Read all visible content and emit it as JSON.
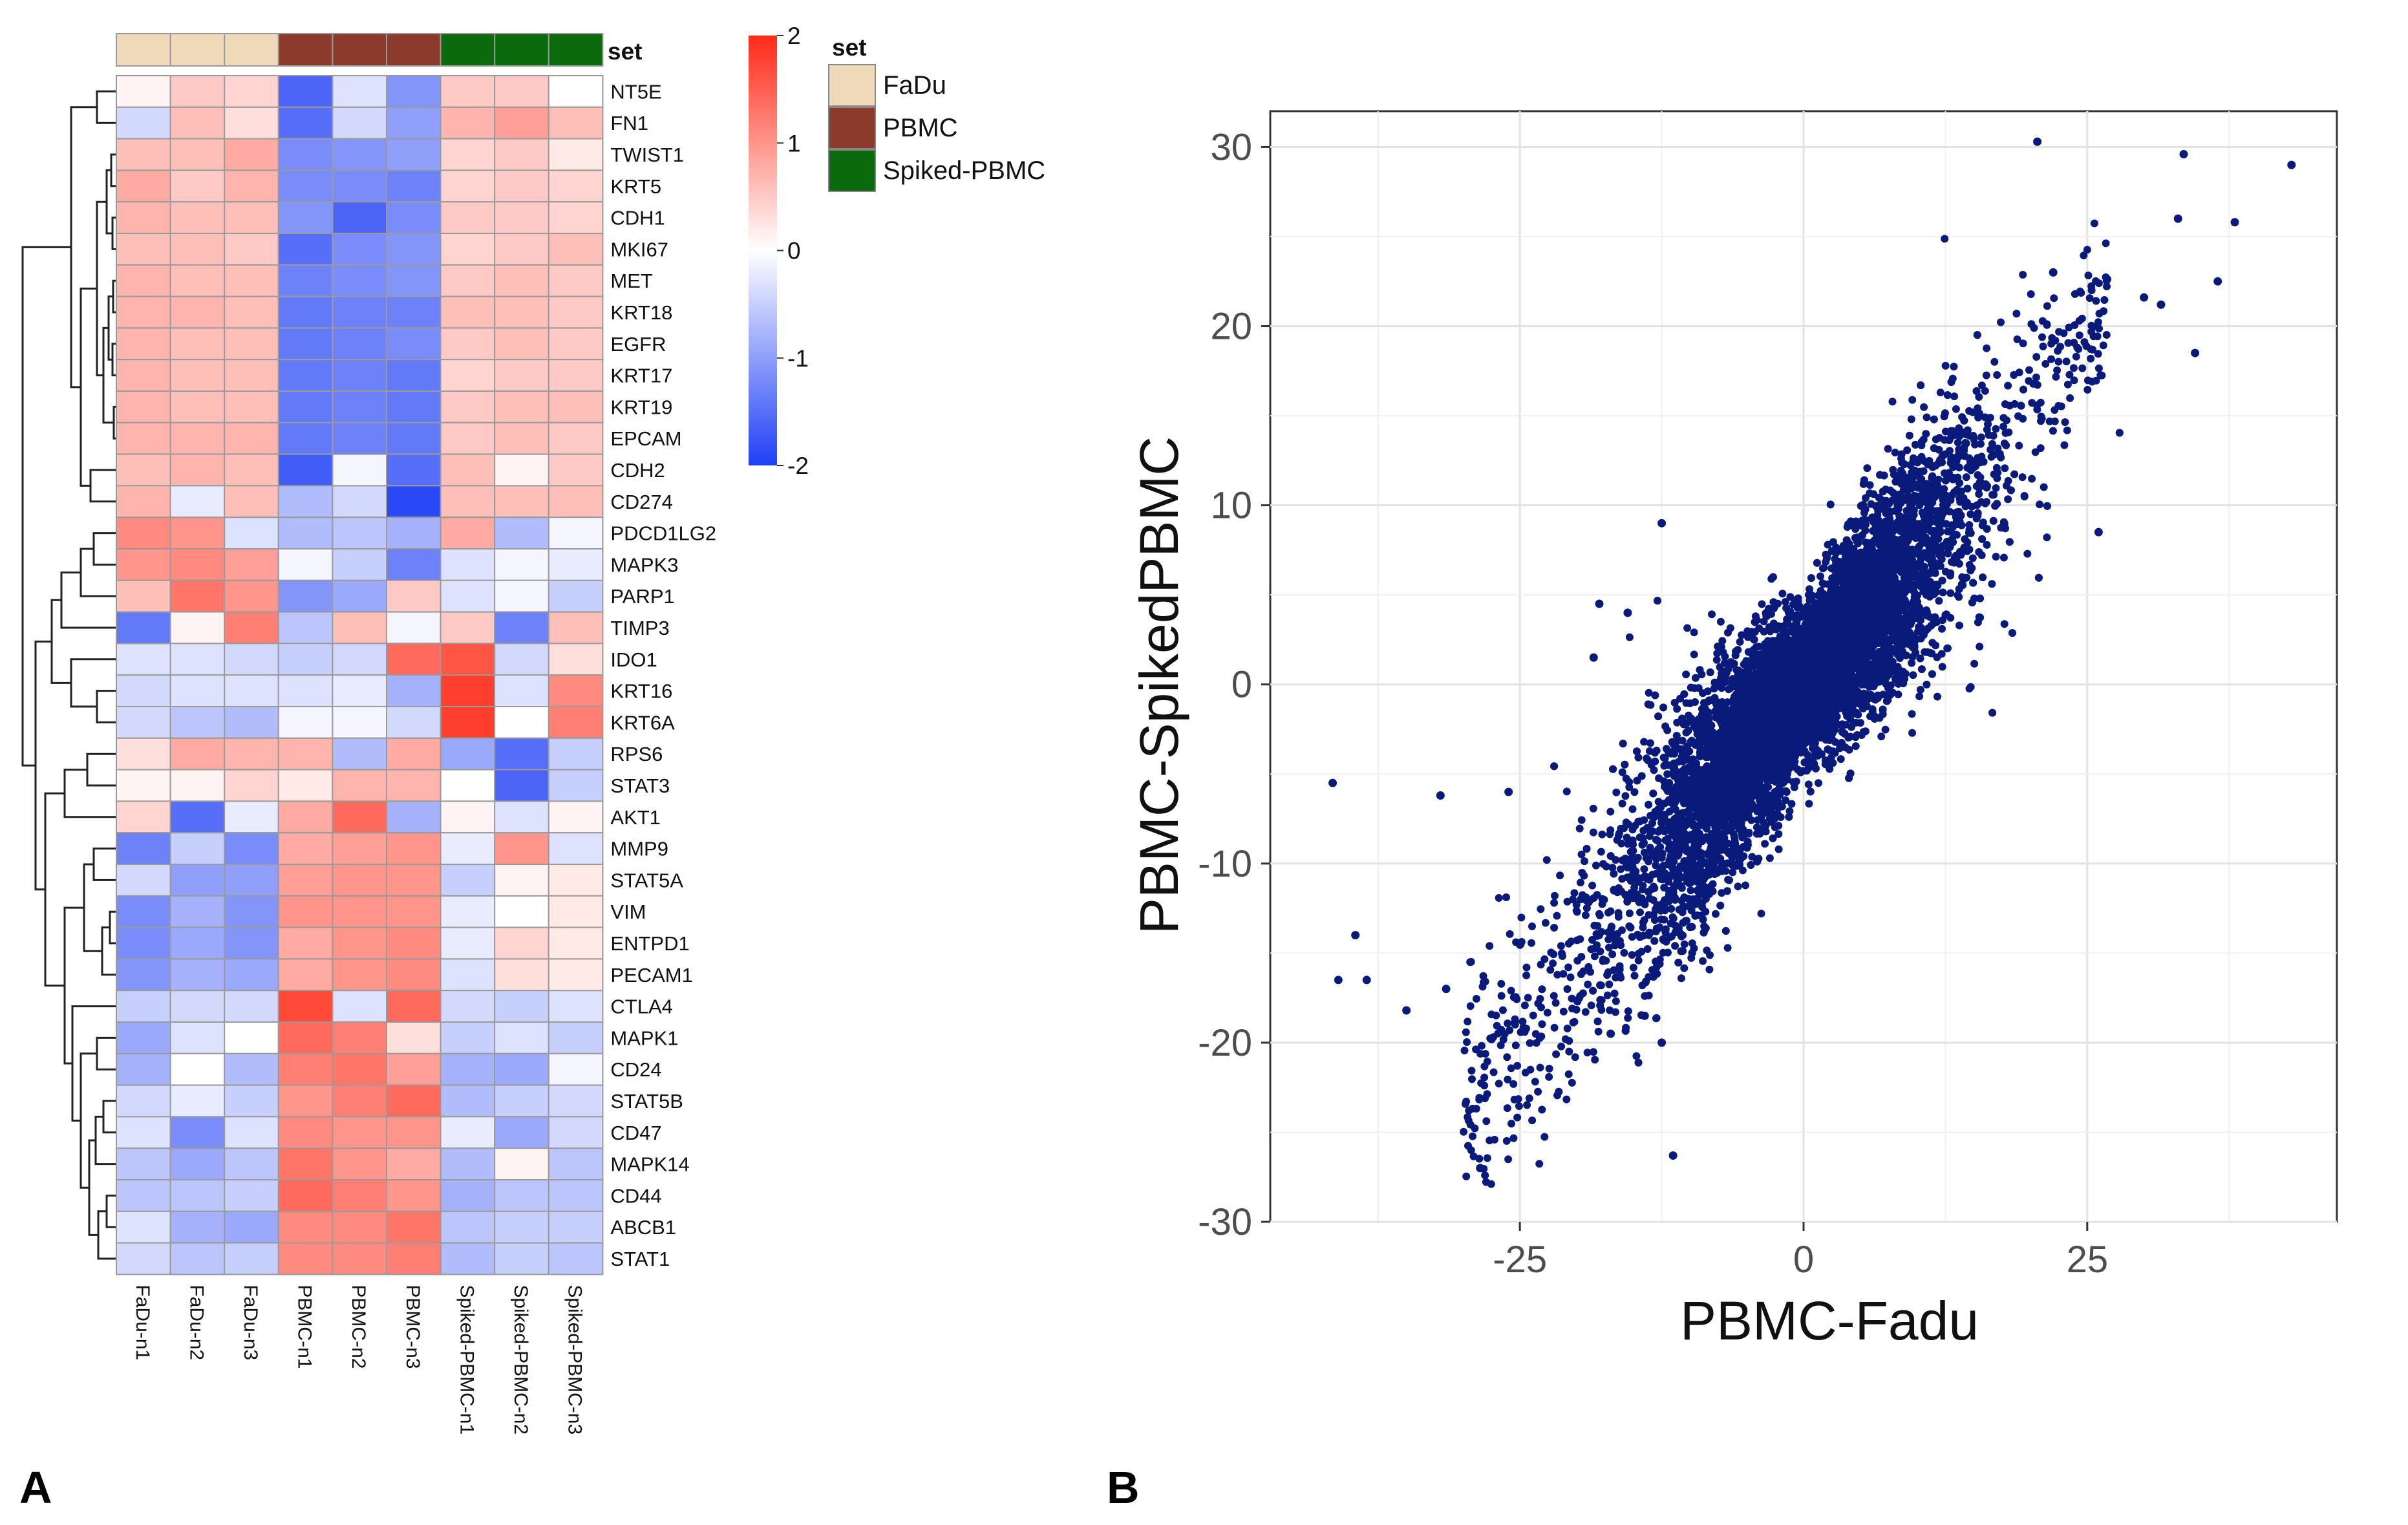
{
  "panels": {
    "a_label": "A",
    "b_label": "B"
  },
  "colors": {
    "fadu": "#f0d9b8",
    "pbmc": "#8b3a2c",
    "spiked": "#0b6a0b",
    "high": "#ff2a17",
    "mid": "#ffffff",
    "low": "#1f3ff5",
    "scatter_point": "#0a1a7a"
  },
  "chart_data": [
    {
      "type": "heatmap",
      "title": "",
      "annotation_title": "set",
      "legend": {
        "title": "set",
        "entries": [
          "FaDu",
          "PBMC",
          "Spiked-PBMC"
        ],
        "position": "right"
      },
      "colorbar": {
        "ticks": [
          2,
          1,
          0,
          -1,
          -2
        ],
        "range": [
          -2,
          2
        ]
      },
      "columns": [
        "FaDu-n1",
        "FaDu-n2",
        "FaDu-n3",
        "PBMC-n1",
        "PBMC-n2",
        "PBMC-n3",
        "Spiked-PBMC-n1",
        "Spiked-PBMC-n2",
        "Spiked-PBMC-n3"
      ],
      "column_groups": [
        "FaDu",
        "FaDu",
        "FaDu",
        "PBMC",
        "PBMC",
        "PBMC",
        "Spiked-PBMC",
        "Spiked-PBMC",
        "Spiked-PBMC"
      ],
      "rows": [
        "NT5E",
        "FN1",
        "TWIST1",
        "KRT5",
        "CDH1",
        "MKI67",
        "MET",
        "KRT18",
        "EGFR",
        "KRT17",
        "KRT19",
        "EPCAM",
        "CDH2",
        "CD274",
        "PDCD1LG2",
        "MAPK3",
        "PARP1",
        "TIMP3",
        "IDO1",
        "KRT16",
        "KRT6A",
        "RPS6",
        "STAT3",
        "AKT1",
        "MMP9",
        "STAT5A",
        "VIM",
        "ENTPD1",
        "PECAM1",
        "CTLA4",
        "MAPK1",
        "CD24",
        "STAT5B",
        "CD47",
        "MAPK14",
        "CD44",
        "ABCB1",
        "STAT1"
      ],
      "values": [
        [
          0.1,
          0.5,
          0.4,
          -1.6,
          -0.3,
          -1.1,
          0.5,
          0.5,
          0.0
        ],
        [
          -0.4,
          0.6,
          0.3,
          -1.5,
          -0.4,
          -1.0,
          0.7,
          0.9,
          0.6
        ],
        [
          0.6,
          0.6,
          0.8,
          -1.2,
          -1.1,
          -1.0,
          0.4,
          0.5,
          0.2
        ],
        [
          0.8,
          0.5,
          0.7,
          -1.2,
          -1.2,
          -1.3,
          0.4,
          0.5,
          0.4
        ],
        [
          0.7,
          0.6,
          0.6,
          -1.1,
          -1.6,
          -1.2,
          0.5,
          0.5,
          0.4
        ],
        [
          0.6,
          0.6,
          0.5,
          -1.5,
          -1.2,
          -1.1,
          0.4,
          0.5,
          0.6
        ],
        [
          0.7,
          0.6,
          0.6,
          -1.3,
          -1.2,
          -1.1,
          0.5,
          0.6,
          0.5
        ],
        [
          0.7,
          0.7,
          0.6,
          -1.4,
          -1.3,
          -1.3,
          0.6,
          0.6,
          0.5
        ],
        [
          0.7,
          0.6,
          0.6,
          -1.4,
          -1.3,
          -1.2,
          0.5,
          0.6,
          0.5
        ],
        [
          0.7,
          0.6,
          0.6,
          -1.4,
          -1.3,
          -1.4,
          0.4,
          0.5,
          0.5
        ],
        [
          0.7,
          0.6,
          0.6,
          -1.4,
          -1.3,
          -1.4,
          0.5,
          0.6,
          0.6
        ],
        [
          0.7,
          0.7,
          0.7,
          -1.4,
          -1.3,
          -1.4,
          0.5,
          0.6,
          0.5
        ],
        [
          0.6,
          0.7,
          0.6,
          -1.7,
          -0.1,
          -1.5,
          0.6,
          0.1,
          0.5
        ],
        [
          0.7,
          -0.2,
          0.6,
          -0.7,
          -0.4,
          -1.9,
          0.6,
          0.6,
          0.6
        ],
        [
          1.1,
          1.0,
          -0.3,
          -0.7,
          -0.6,
          -0.8,
          0.8,
          -0.7,
          -0.1
        ],
        [
          1.0,
          1.1,
          0.9,
          -0.1,
          -0.5,
          -1.3,
          -0.3,
          -0.1,
          -0.2
        ],
        [
          0.6,
          1.3,
          1.0,
          -1.1,
          -0.9,
          0.5,
          -0.3,
          -0.1,
          -0.5
        ],
        [
          -1.4,
          0.1,
          1.2,
          -0.6,
          0.6,
          -0.1,
          0.5,
          -1.3,
          0.6
        ],
        [
          -0.3,
          -0.3,
          -0.4,
          -0.5,
          -0.4,
          1.4,
          1.6,
          -0.4,
          0.3
        ],
        [
          -0.4,
          -0.3,
          -0.3,
          -0.3,
          -0.2,
          -0.8,
          1.8,
          -0.3,
          1.1
        ],
        [
          -0.4,
          -0.6,
          -0.7,
          -0.1,
          -0.1,
          -0.4,
          1.8,
          0.0,
          1.2
        ],
        [
          0.3,
          0.8,
          0.7,
          0.7,
          -0.7,
          0.8,
          -0.9,
          -1.5,
          -0.5
        ],
        [
          0.1,
          0.1,
          0.4,
          0.2,
          0.7,
          0.7,
          0.0,
          -1.6,
          -0.5
        ],
        [
          0.4,
          -1.5,
          -0.2,
          0.8,
          1.4,
          -0.8,
          0.1,
          -0.3,
          0.1
        ],
        [
          -1.3,
          -0.5,
          -1.2,
          0.8,
          0.9,
          1.0,
          -0.2,
          1.0,
          -0.3
        ],
        [
          -0.4,
          -1.0,
          -1.0,
          0.9,
          1.0,
          1.0,
          -0.5,
          0.1,
          0.2
        ],
        [
          -1.2,
          -0.8,
          -1.1,
          1.0,
          1.0,
          1.0,
          -0.2,
          0.0,
          0.2
        ],
        [
          -1.2,
          -0.9,
          -1.1,
          0.8,
          1.0,
          1.1,
          -0.2,
          0.4,
          0.2
        ],
        [
          -1.1,
          -0.8,
          -0.9,
          0.8,
          1.0,
          1.1,
          -0.3,
          0.3,
          0.2
        ],
        [
          -0.5,
          -0.4,
          -0.4,
          1.7,
          -0.3,
          1.4,
          -0.4,
          -0.5,
          -0.3
        ],
        [
          -0.9,
          -0.3,
          0.0,
          1.4,
          1.2,
          0.3,
          -0.5,
          -0.3,
          -0.5
        ],
        [
          -0.8,
          0.0,
          -0.7,
          1.2,
          1.3,
          0.9,
          -0.8,
          -0.9,
          -0.1
        ],
        [
          -0.4,
          -0.2,
          -0.5,
          1.0,
          1.2,
          1.4,
          -0.7,
          -0.5,
          -0.4
        ],
        [
          -0.3,
          -1.2,
          -0.3,
          1.1,
          1.0,
          1.0,
          -0.2,
          -0.9,
          -0.4
        ],
        [
          -0.6,
          -0.9,
          -0.6,
          1.3,
          1.0,
          0.8,
          -0.7,
          0.1,
          -0.6
        ],
        [
          -0.6,
          -0.6,
          -0.5,
          1.4,
          1.2,
          1.0,
          -0.8,
          -0.6,
          -0.6
        ],
        [
          -0.3,
          -0.8,
          -0.9,
          1.1,
          1.1,
          1.3,
          -0.6,
          -0.5,
          -0.5
        ],
        [
          -0.4,
          -0.6,
          -0.5,
          1.1,
          1.1,
          1.2,
          -0.7,
          -0.5,
          -0.6
        ]
      ]
    },
    {
      "type": "scatter",
      "title": "",
      "xlabel": "PBMC-Fadu",
      "ylabel": "PBMC-SpikedPBMC",
      "xlim": [
        -47,
        47
      ],
      "ylim": [
        -30,
        32
      ],
      "x_ticks": [
        -25,
        0,
        25
      ],
      "y_ticks": [
        30,
        20,
        10,
        0,
        -10,
        -20,
        -30
      ],
      "grid": true,
      "n_points": 9000,
      "trend": {
        "slope": 0.7,
        "intercept": 0.0,
        "spread_sd": 2.0
      },
      "points": [
        [
          20.6,
          30.3
        ],
        [
          33.5,
          29.6
        ],
        [
          43.0,
          29.0
        ],
        [
          33.0,
          26.0
        ],
        [
          38.0,
          25.8
        ],
        [
          36.5,
          22.5
        ],
        [
          31.5,
          21.2
        ],
        [
          30.0,
          21.6
        ],
        [
          34.5,
          18.5
        ],
        [
          22.0,
          23.0
        ],
        [
          -12.5,
          9.0
        ],
        [
          -18.0,
          4.5
        ],
        [
          -15.5,
          4.0
        ],
        [
          -18.5,
          1.5
        ],
        [
          26.0,
          8.5
        ],
        [
          -41.5,
          -5.5
        ],
        [
          -32.0,
          -6.2
        ],
        [
          -26.0,
          -6.0
        ],
        [
          -39.5,
          -14.0
        ],
        [
          -41.0,
          -16.5
        ],
        [
          -38.5,
          -16.5
        ],
        [
          -35.0,
          -18.2
        ],
        [
          -31.5,
          -17.0
        ],
        [
          -27.5,
          -19.8
        ],
        [
          -28.5,
          -27.0
        ],
        [
          -11.5,
          -26.3
        ],
        [
          -12.5,
          -20.0
        ],
        [
          -14.0,
          -18.5
        ],
        [
          -17.0,
          -19.5
        ]
      ]
    }
  ]
}
